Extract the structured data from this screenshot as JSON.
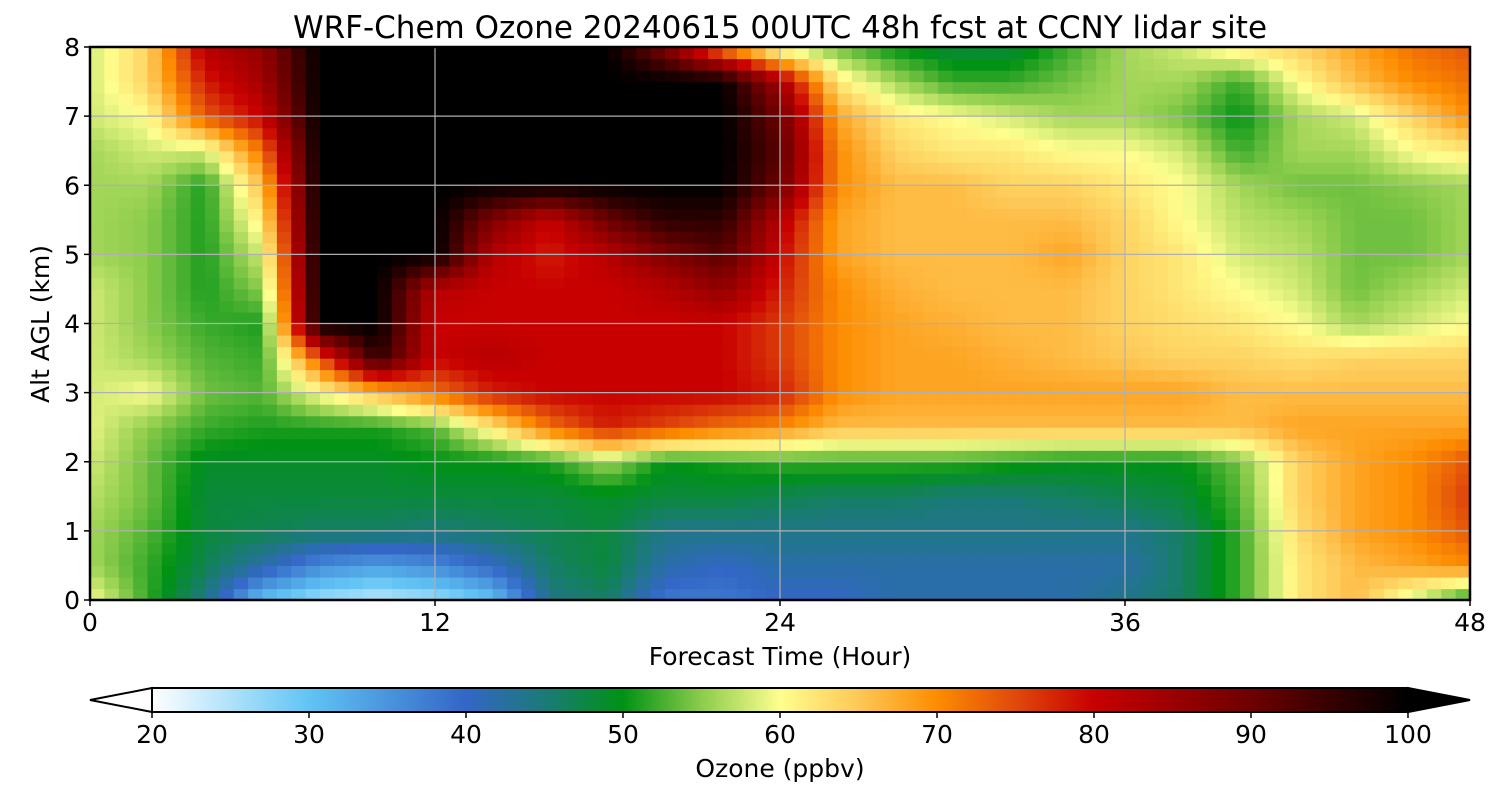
{
  "chart_data": {
    "type": "heatmap",
    "title": "WRF-Chem Ozone  20240615 00UTC 48h fcst at CCNY lidar site",
    "xlabel": "Forecast Time (Hour)",
    "ylabel": "Alt AGL (km)",
    "xlim": [
      0,
      48
    ],
    "ylim": [
      0,
      8
    ],
    "x_ticks": [
      0,
      12,
      24,
      36,
      48
    ],
    "y_ticks": [
      0,
      1,
      2,
      3,
      4,
      5,
      6,
      7,
      8
    ],
    "x_tick_labels": [
      "0",
      "12",
      "24",
      "36",
      "48"
    ],
    "y_tick_labels": [
      "0",
      "1",
      "2",
      "3",
      "4",
      "5",
      "6",
      "7",
      "8"
    ],
    "grid": true,
    "x_hours": [
      0,
      2,
      4,
      6,
      8,
      10,
      12,
      14,
      16,
      18,
      20,
      22,
      24,
      26,
      28,
      30,
      32,
      34,
      36,
      38,
      40,
      42,
      44,
      46,
      48
    ],
    "y_km": [
      0,
      0.5,
      1,
      1.5,
      2,
      2.5,
      3,
      3.5,
      4,
      4.5,
      5,
      5.5,
      6,
      6.5,
      7,
      7.5,
      8
    ],
    "ozone_ppbv": [
      [
        60,
        52,
        44,
        30,
        26,
        24,
        26,
        30,
        44,
        46,
        38,
        38,
        40,
        40,
        42,
        42,
        42,
        42,
        44,
        46,
        52,
        62,
        66,
        58,
        50
      ],
      [
        56,
        52,
        47,
        42,
        36,
        34,
        36,
        40,
        46,
        48,
        42,
        40,
        42,
        42,
        42,
        42,
        42,
        42,
        42,
        46,
        52,
        62,
        66,
        68,
        70
      ],
      [
        56,
        53,
        48,
        47,
        46,
        46,
        45,
        46,
        47,
        48,
        44,
        44,
        44,
        44,
        44,
        44,
        44,
        44,
        44,
        46,
        52,
        63,
        68,
        70,
        74
      ],
      [
        57,
        54,
        48,
        48,
        48,
        48,
        48,
        48,
        48,
        49,
        48,
        48,
        47,
        46,
        46,
        45,
        45,
        46,
        47,
        48,
        53,
        64,
        68,
        70,
        76
      ],
      [
        58,
        54,
        49,
        49,
        49,
        49,
        50,
        50,
        51,
        56,
        50,
        51,
        52,
        52,
        52,
        52,
        51,
        50,
        50,
        50,
        54,
        64,
        68,
        70,
        74
      ],
      [
        59,
        55,
        52,
        51,
        51,
        51,
        53,
        62,
        72,
        78,
        75,
        72,
        70,
        66,
        66,
        66,
        66,
        66,
        66,
        66,
        66,
        68,
        68,
        68,
        68
      ],
      [
        58,
        60,
        54,
        53,
        60,
        66,
        72,
        78,
        80,
        80,
        80,
        80,
        78,
        70,
        68,
        68,
        68,
        68,
        68,
        68,
        66,
        66,
        66,
        66,
        66
      ],
      [
        58,
        56,
        53,
        52,
        74,
        96,
        80,
        82,
        80,
        80,
        80,
        80,
        76,
        70,
        68,
        68,
        67,
        66,
        65,
        64,
        64,
        63,
        64,
        64,
        64
      ],
      [
        58,
        55,
        52,
        51,
        100,
        100,
        80,
        80,
        80,
        80,
        80,
        80,
        76,
        70,
        68,
        67,
        66,
        66,
        64,
        63,
        62,
        60,
        56,
        58,
        60
      ],
      [
        58,
        55,
        51,
        55,
        100,
        100,
        82,
        80,
        80,
        80,
        82,
        86,
        78,
        70,
        67,
        66,
        66,
        66,
        64,
        62,
        60,
        58,
        54,
        56,
        58
      ],
      [
        56,
        55,
        51,
        58,
        100,
        100,
        100,
        82,
        78,
        82,
        88,
        92,
        80,
        68,
        66,
        66,
        66,
        68,
        64,
        62,
        58,
        57,
        54,
        54,
        56
      ],
      [
        56,
        55,
        51,
        62,
        100,
        100,
        100,
        88,
        80,
        90,
        96,
        96,
        82,
        68,
        66,
        66,
        66,
        66,
        64,
        60,
        57,
        56,
        54,
        54,
        56
      ],
      [
        56,
        56,
        51,
        66,
        100,
        100,
        100,
        100,
        100,
        100,
        100,
        100,
        90,
        70,
        66,
        66,
        64,
        64,
        62,
        60,
        56,
        54,
        54,
        55,
        56
      ],
      [
        56,
        58,
        58,
        72,
        100,
        100,
        100,
        100,
        100,
        100,
        100,
        100,
        92,
        70,
        64,
        62,
        62,
        60,
        60,
        58,
        52,
        56,
        56,
        60,
        62
      ],
      [
        58,
        60,
        74,
        80,
        100,
        100,
        100,
        100,
        100,
        100,
        100,
        100,
        90,
        68,
        62,
        60,
        58,
        56,
        56,
        54,
        50,
        56,
        58,
        64,
        70
      ],
      [
        58,
        64,
        78,
        84,
        100,
        100,
        100,
        100,
        100,
        100,
        100,
        100,
        84,
        62,
        56,
        52,
        52,
        54,
        56,
        56,
        52,
        60,
        66,
        70,
        72
      ],
      [
        58,
        64,
        82,
        86,
        100,
        100,
        100,
        100,
        100,
        100,
        88,
        70,
        58,
        54,
        50,
        48,
        48,
        52,
        56,
        58,
        62,
        64,
        68,
        72,
        74
      ]
    ]
  },
  "colorbar": {
    "label": "Ozone  (ppbv)",
    "ticks": [
      20,
      30,
      40,
      50,
      60,
      70,
      80,
      90,
      100
    ],
    "tick_labels": [
      "20",
      "30",
      "40",
      "50",
      "60",
      "70",
      "80",
      "90",
      "100"
    ],
    "range": [
      20,
      100
    ],
    "extend": "both",
    "color_stops": [
      {
        "value": 20,
        "color": "#ffffff"
      },
      {
        "value": 30,
        "color": "#60c4f4"
      },
      {
        "value": 40,
        "color": "#3366c6"
      },
      {
        "value": 45,
        "color": "#1b7a78"
      },
      {
        "value": 50,
        "color": "#009214"
      },
      {
        "value": 55,
        "color": "#8ccc4c"
      },
      {
        "value": 60,
        "color": "#fefe8e"
      },
      {
        "value": 65,
        "color": "#fec856"
      },
      {
        "value": 70,
        "color": "#fd8c00"
      },
      {
        "value": 75,
        "color": "#e0490c"
      },
      {
        "value": 80,
        "color": "#c80000"
      },
      {
        "value": 90,
        "color": "#6e0000"
      },
      {
        "value": 100,
        "color": "#000000"
      }
    ]
  }
}
